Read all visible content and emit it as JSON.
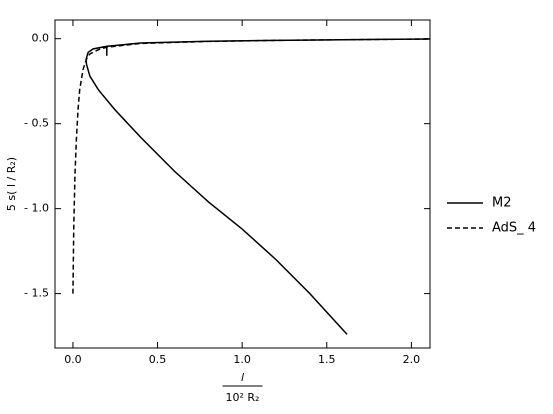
{
  "chart_data": {
    "type": "line",
    "ylabel": "5 s( l / R₂)",
    "xlabel": {
      "numerator": "l",
      "denominator": "10² R₂"
    },
    "xlim": [
      -0.106,
      2.11
    ],
    "ylim": [
      -1.82,
      0.11
    ],
    "xticks": [
      {
        "value": 0,
        "label": "0.0"
      },
      0.5,
      {
        "value": 1,
        "label": "1.0"
      },
      1.5,
      {
        "value": 2,
        "label": "2.0"
      }
    ],
    "yticks": [
      {
        "value": 0,
        "label": "0.0"
      },
      {
        "value": -0.5,
        "label": "- 0.5"
      },
      {
        "value": -1,
        "label": "- 1.0"
      },
      {
        "value": -1.5,
        "label": "- 1.5"
      }
    ],
    "legend": "right",
    "series": [
      {
        "name": "M2",
        "color": "#000000",
        "dash": "solid",
        "x": [
          1.62,
          1.4,
          1.2,
          1.0,
          0.8,
          0.6,
          0.4,
          0.25,
          0.15,
          0.1,
          0.08,
          0.078,
          0.09,
          0.12,
          0.2,
          0.2,
          0.2,
          0.4,
          0.8,
          1.2,
          1.6,
          2.11
        ],
        "values": [
          -1.74,
          -1.5,
          -1.3,
          -1.12,
          -0.96,
          -0.78,
          -0.58,
          -0.42,
          -0.3,
          -0.22,
          -0.15,
          -0.12,
          -0.08,
          -0.06,
          -0.045,
          -0.1,
          -0.045,
          -0.025,
          -0.015,
          -0.01,
          -0.006,
          -0.002
        ]
      },
      {
        "name": "AdS_ 4",
        "color": "#000000",
        "dash": "dashed",
        "x": [
          0.0,
          0.005,
          0.012,
          0.02,
          0.03,
          0.04,
          0.06,
          0.08,
          0.1,
          0.15,
          0.2,
          0.4,
          0.8,
          1.2,
          1.6,
          2.11
        ],
        "values": [
          -1.5,
          -1.1,
          -0.8,
          -0.6,
          -0.42,
          -0.3,
          -0.18,
          -0.12,
          -0.09,
          -0.065,
          -0.05,
          -0.028,
          -0.016,
          -0.01,
          -0.006,
          -0.002
        ]
      }
    ]
  }
}
